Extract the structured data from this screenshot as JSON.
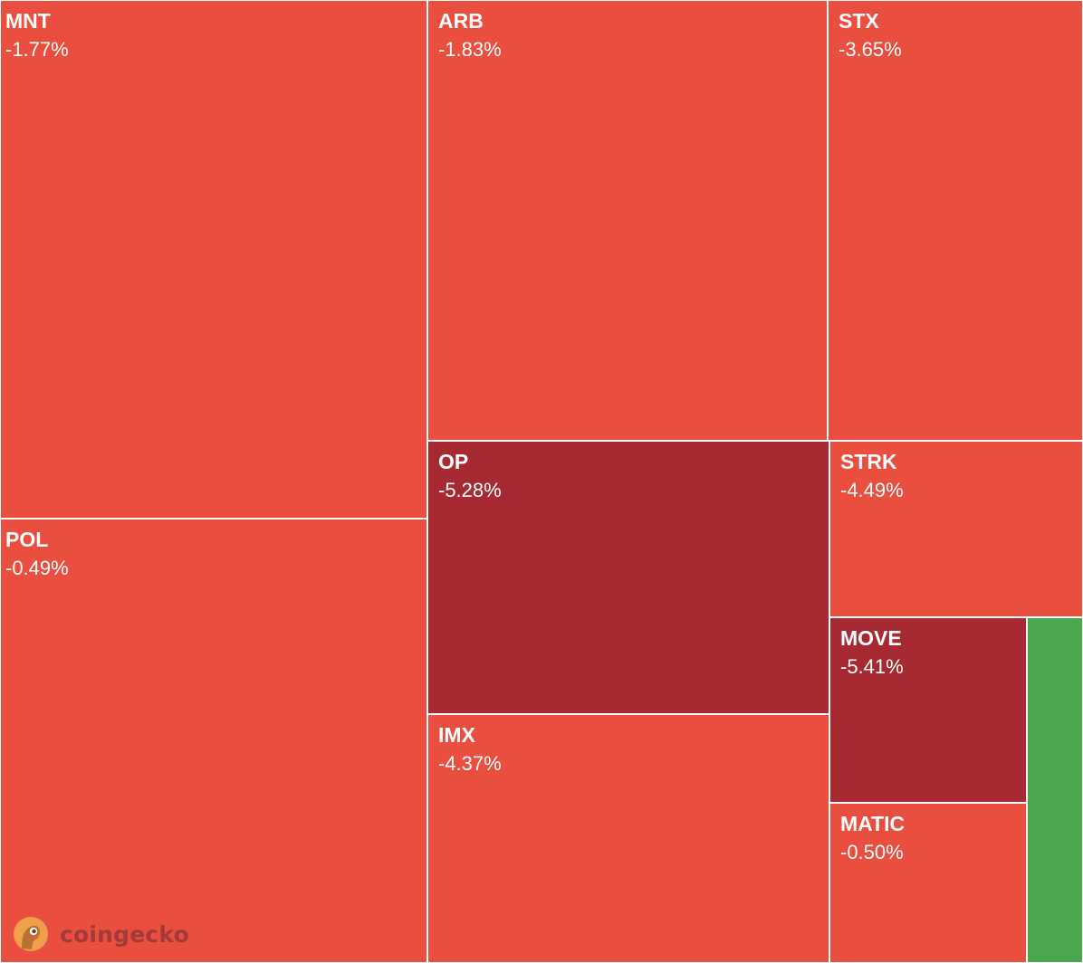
{
  "chart_data": {
    "type": "treemap",
    "source": "coingecko",
    "items": [
      {
        "symbol": "MNT",
        "change": "-1.77%",
        "change_value": -1.77,
        "color": "#e94e3f"
      },
      {
        "symbol": "POL",
        "change": "-0.49%",
        "change_value": -0.49,
        "color": "#e94e3f"
      },
      {
        "symbol": "ARB",
        "change": "-1.83%",
        "change_value": -1.83,
        "color": "#e94e3f"
      },
      {
        "symbol": "STX",
        "change": "-3.65%",
        "change_value": -3.65,
        "color": "#e94e3f"
      },
      {
        "symbol": "OP",
        "change": "-5.28%",
        "change_value": -5.28,
        "color": "#a72a33"
      },
      {
        "symbol": "STRK",
        "change": "-4.49%",
        "change_value": -4.49,
        "color": "#e94e3f"
      },
      {
        "symbol": "IMX",
        "change": "-4.37%",
        "change_value": -4.37,
        "color": "#e94e3f"
      },
      {
        "symbol": "MOVE",
        "change": "-5.41%",
        "change_value": -5.41,
        "color": "#a72a33"
      },
      {
        "symbol": "MATIC",
        "change": "-0.50%",
        "change_value": -0.5,
        "color": "#e94e3f"
      },
      {
        "symbol": "",
        "change": "",
        "change_value": null,
        "color": "#4aa74f"
      }
    ]
  },
  "watermark": {
    "brand": "coingecko",
    "logo_icon": "coingecko-gecko-icon"
  },
  "colors": {
    "decline": "#e94e3f",
    "strong_decline": "#a72a33",
    "gain": "#4aa74f",
    "border": "#ffffff",
    "brand_text": "#a33a3a"
  }
}
